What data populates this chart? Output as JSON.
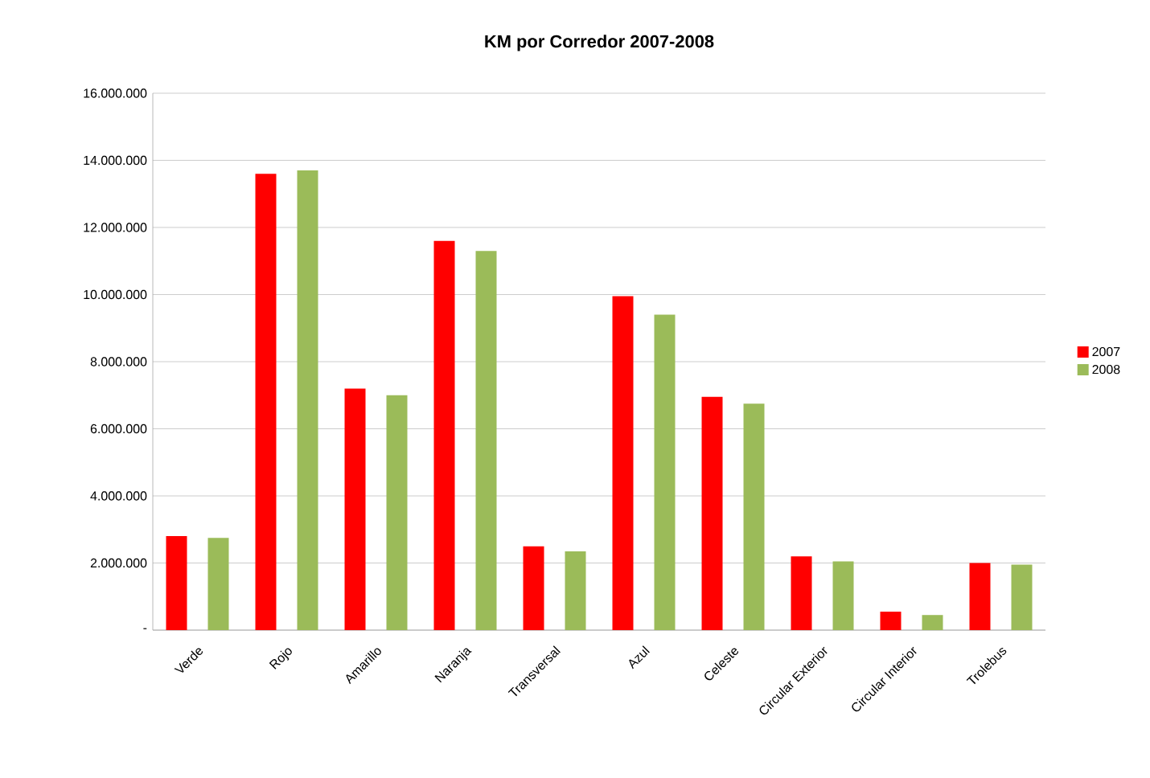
{
  "chart_data": {
    "type": "bar",
    "title": "KM por Corredor 2007-2008",
    "categories": [
      "Verde",
      "Rojo",
      "Amarillo",
      "Naranja",
      "Transversal",
      "Azul",
      "Celeste",
      "Circular Exterior",
      "Circular Interior",
      "Trolebus"
    ],
    "series": [
      {
        "name": "2007",
        "color": "#ff0000",
        "values": [
          2800000,
          13600000,
          7200000,
          11600000,
          2500000,
          9950000,
          6950000,
          2200000,
          550000,
          2000000
        ]
      },
      {
        "name": "2008",
        "color": "#9bbb59",
        "values": [
          2750000,
          13700000,
          7000000,
          11300000,
          2350000,
          9400000,
          6750000,
          2050000,
          450000,
          1950000
        ]
      }
    ],
    "ylim": [
      0,
      16000000
    ],
    "yticks": [
      {
        "value": 0,
        "label": "-"
      },
      {
        "value": 2000000,
        "label": "2.000.000"
      },
      {
        "value": 4000000,
        "label": "4.000.000"
      },
      {
        "value": 6000000,
        "label": "6.000.000"
      },
      {
        "value": 8000000,
        "label": "8.000.000"
      },
      {
        "value": 10000000,
        "label": "10.000.000"
      },
      {
        "value": 12000000,
        "label": "12.000.000"
      },
      {
        "value": 14000000,
        "label": "14.000.000"
      },
      {
        "value": 16000000,
        "label": "16.000.000"
      }
    ],
    "grid": "y",
    "legend": "right"
  }
}
